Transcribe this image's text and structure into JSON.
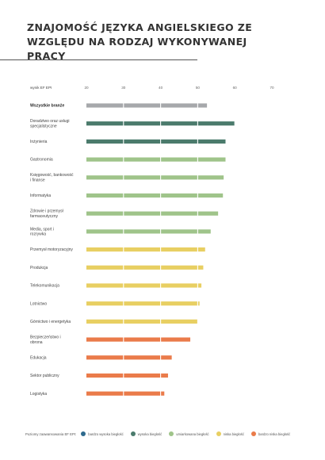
{
  "title": "ZNAJOMOŚĆ JĘZYKA ANGIELSKIEGO ZE WZGLĘDU NA RODZAJ WYKONYWANEJ PRACY",
  "legend": {
    "title": "Poziomy zaawansowania EF EPI:",
    "items": [
      {
        "label": "bardzo wysoka biegłość",
        "color": "#2e6a8e"
      },
      {
        "label": "wysoka biegłość",
        "color": "#4b7b6c"
      },
      {
        "label": "umiarkowana biegłość",
        "color": "#9fc48a"
      },
      {
        "label": "niska biegłość",
        "color": "#e8cf62"
      },
      {
        "label": "bardzo niska biegłość",
        "color": "#ea7b4a"
      }
    ]
  },
  "chart_data": {
    "type": "bar",
    "orientation": "horizontal",
    "xlabel": "wynik EF EPI",
    "xlim": [
      20,
      70
    ],
    "xticks": [
      20,
      30,
      40,
      50,
      60,
      70
    ],
    "grid": true,
    "categories": [
      "Wszystkie branże",
      "Doradztwo oraz usługi specjalistyczne",
      "Inżynieria",
      "Gastronomia",
      "Księgowość, bankowość i finanse",
      "Informatyka",
      "Zdrowie i przemysł farmaceutyczny",
      "Media, sport i rozrywka",
      "Przemysł motoryzacyjny",
      "Produkcja",
      "Telekomunikacja",
      "Lotnictwo",
      "Górnictwo i energetyka",
      "Bezpieczeństwo i obrona",
      "Edukacja",
      "Sektor publiczny",
      "Logistyka"
    ],
    "values": [
      52.5,
      60.0,
      57.5,
      57.5,
      57.0,
      56.8,
      55.5,
      53.5,
      52.0,
      51.5,
      51.0,
      50.5,
      50.0,
      48.0,
      43.0,
      42.0,
      41.0
    ],
    "colors": [
      "#a6a8ab",
      "#4b7b6c",
      "#4b7b6c",
      "#9fc48a",
      "#9fc48a",
      "#9fc48a",
      "#9fc48a",
      "#9fc48a",
      "#e8cf62",
      "#e8cf62",
      "#e8cf62",
      "#e8cf62",
      "#e8cf62",
      "#ea7b4a",
      "#ea7b4a",
      "#ea7b4a",
      "#ea7b4a"
    ],
    "bold_category": "Wszystkie branże"
  }
}
